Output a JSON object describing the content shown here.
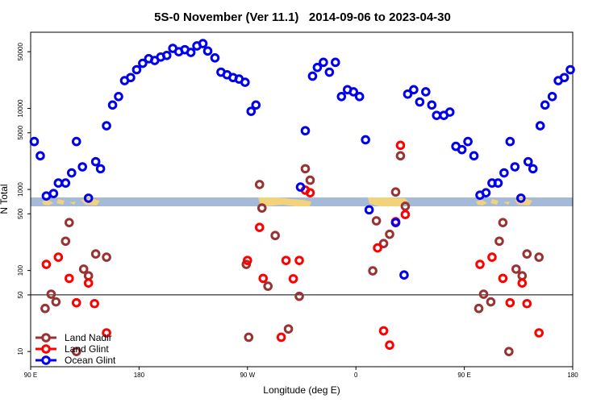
{
  "chart_data": {
    "type": "scatter",
    "title": "5S-0 November (Ver 11.1)   2014-09-06 to 2023-04-30",
    "x_label": "Longitude (deg E)",
    "y_label": "N Total",
    "log_y": true,
    "legend": "bottom left",
    "hline": 50,
    "xlim": [
      90,
      540
    ],
    "xticks": [
      {
        "value": 90,
        "label": "90 E"
      },
      180,
      {
        "value": 270,
        "label": "90 W"
      },
      {
        "value": 360,
        "label": "0"
      },
      {
        "value": 450,
        "label": "90 E"
      },
      {
        "value": 540,
        "label": "180"
      }
    ],
    "ylim": [
      6.5,
      87000
    ],
    "yticks": [
      10,
      50,
      100,
      500,
      1000,
      5000,
      10000,
      50000
    ],
    "series": [
      {
        "name": "Land Nadir",
        "color": "#993333",
        "x": [
          102,
          107,
          111,
          119,
          122,
          128,
          134,
          138,
          144,
          153,
          269,
          271,
          280,
          282,
          293,
          287,
          304,
          313,
          318,
          322,
          374,
          377,
          383,
          388,
          393,
          397,
          401,
          462,
          466,
          472,
          479,
          482,
          487,
          493,
          498,
          502,
          512
        ],
        "values": [
          34,
          51,
          41,
          230,
          390,
          10,
          104,
          86,
          160,
          146,
          119,
          15,
          1150,
          590,
          270,
          64,
          19,
          48,
          1800,
          1300,
          99,
          410,
          215,
          280,
          930,
          2600,
          620,
          34,
          51,
          41,
          230,
          390,
          10,
          104,
          86,
          160,
          146
        ]
      },
      {
        "name": "Land Glint",
        "color": "#ff0000",
        "x": [
          103,
          113,
          122,
          128,
          138,
          143,
          153,
          270,
          280,
          283,
          298,
          302,
          308,
          313,
          318,
          322,
          378,
          383,
          388,
          393,
          397,
          401,
          463,
          473,
          482,
          488,
          498,
          502,
          512
        ],
        "values": [
          119,
          146,
          80,
          40,
          70,
          39,
          17,
          133,
          340,
          80,
          15,
          133,
          79,
          133,
          980,
          910,
          190,
          18,
          12,
          400,
          3500,
          490,
          119,
          146,
          80,
          40,
          70,
          39,
          17
        ]
      },
      {
        "name": "Ocean Glint",
        "color": "#0000ee",
        "x": [
          93,
          98,
          103,
          109,
          113,
          119,
          124,
          128,
          133,
          138,
          144,
          148,
          153,
          158,
          163,
          168,
          173,
          178,
          183,
          188,
          193,
          198,
          203,
          208,
          213,
          218,
          223,
          228,
          233,
          237,
          243,
          248,
          253,
          258,
          263,
          268,
          273,
          277,
          314,
          318,
          324,
          328,
          333,
          338,
          343,
          348,
          353,
          358,
          363,
          368,
          371,
          393,
          400,
          403,
          408,
          413,
          418,
          423,
          427,
          433,
          438,
          443,
          448,
          453,
          458,
          463,
          468,
          473,
          478,
          483,
          488,
          492,
          497,
          503,
          507,
          513,
          517,
          523,
          528,
          533,
          538
        ],
        "values": [
          3900,
          2600,
          830,
          890,
          1200,
          1200,
          1600,
          3900,
          1900,
          780,
          2200,
          1800,
          6100,
          11000,
          14000,
          22000,
          24000,
          30000,
          36000,
          41000,
          39000,
          43000,
          45000,
          55000,
          50000,
          53000,
          49000,
          59000,
          63000,
          51000,
          42000,
          28000,
          26000,
          24000,
          23000,
          21000,
          9200,
          11000,
          1070,
          5300,
          25000,
          32000,
          37000,
          28000,
          37000,
          14000,
          17000,
          16000,
          14000,
          4100,
          560,
          390,
          88,
          15000,
          17000,
          12000,
          16000,
          11000,
          8200,
          8200,
          9000,
          3400,
          3100,
          3900,
          2600,
          850,
          910,
          1200,
          1200,
          1600,
          3900,
          1900,
          780,
          2200,
          1800,
          6100,
          11000,
          14000,
          22000,
          24000,
          30000
        ]
      }
    ]
  }
}
